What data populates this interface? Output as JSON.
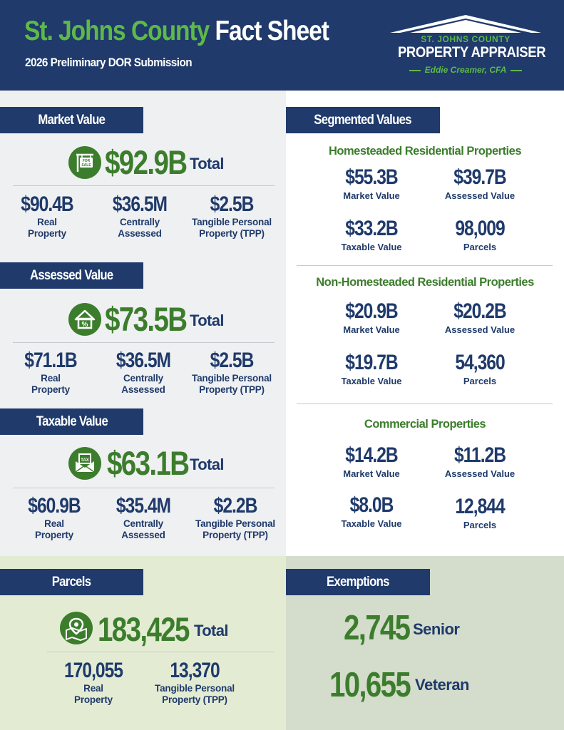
{
  "header": {
    "title_county": "St. Johns County",
    "title_rest": "Fact Sheet",
    "subtitle": "2026 Preliminary DOR Submission",
    "logo": {
      "county": "ST. JOHNS COUNTY",
      "office": "PROPERTY APPRAISER",
      "person": "Eddie Creamer, CFA"
    }
  },
  "colors": {
    "navy": "#1f3a6b",
    "green": "#3c7d2d",
    "bright_green": "#5eb94a"
  },
  "market": {
    "label": "Market Value",
    "icon": "for-sale-sign-icon",
    "total": "$92.9B",
    "total_word": "Total",
    "items": [
      {
        "value": "$90.4B",
        "label_1": "Real",
        "label_2": "Property"
      },
      {
        "value": "$36.5M",
        "label_1": "Centrally",
        "label_2": "Assessed"
      },
      {
        "value": "$2.5B",
        "label_1": "Tangible Personal",
        "label_2": "Property (TPP)"
      }
    ]
  },
  "assessed": {
    "label": "Assessed Value",
    "icon": "house-percent-icon",
    "total": "$73.5B",
    "total_word": "Total",
    "items": [
      {
        "value": "$71.1B",
        "label_1": "Real",
        "label_2": "Property"
      },
      {
        "value": "$36.5M",
        "label_1": "Centrally",
        "label_2": "Assessed"
      },
      {
        "value": "$2.5B",
        "label_1": "Tangible Personal",
        "label_2": "Property (TPP)"
      }
    ]
  },
  "taxable": {
    "label": "Taxable Value",
    "icon": "tax-envelope-icon",
    "total": "$63.1B",
    "total_word": "Total",
    "items": [
      {
        "value": "$60.9B",
        "label_1": "Real",
        "label_2": "Property"
      },
      {
        "value": "$35.4M",
        "label_1": "Centrally",
        "label_2": "Assessed"
      },
      {
        "value": "$2.2B",
        "label_1": "Tangible Personal",
        "label_2": "Property (TPP)"
      }
    ]
  },
  "segmented": {
    "label": "Segmented Values",
    "groups": [
      {
        "title": "Homesteaded Residential Properties",
        "market": "$55.3B",
        "assessed": "$39.7B",
        "taxable": "$33.2B",
        "parcels": "98,009"
      },
      {
        "title": "Non-Homesteaded Residential Properties",
        "market": "$20.9B",
        "assessed": "$20.2B",
        "taxable": "$19.7B",
        "parcels": "54,360"
      },
      {
        "title": "Commercial Properties",
        "market": "$14.2B",
        "assessed": "$11.2B",
        "taxable": "$8.0B",
        "parcels": "12,844"
      }
    ],
    "labels": {
      "market": "Market Value",
      "assessed": "Assessed Value",
      "taxable": "Taxable Value",
      "parcels": "Parcels"
    }
  },
  "parcels": {
    "label": "Parcels",
    "icon": "map-pin-icon",
    "total": "183,425",
    "total_word": "Total",
    "items": [
      {
        "value": "170,055",
        "label_1": "Real",
        "label_2": "Property"
      },
      {
        "value": "13,370",
        "label_1": "Tangible Personal",
        "label_2": "Property (TPP)"
      }
    ]
  },
  "exemptions": {
    "label": "Exemptions",
    "items": [
      {
        "value": "2,745",
        "label": "Senior"
      },
      {
        "value": "10,655",
        "label": "Veteran"
      }
    ]
  }
}
